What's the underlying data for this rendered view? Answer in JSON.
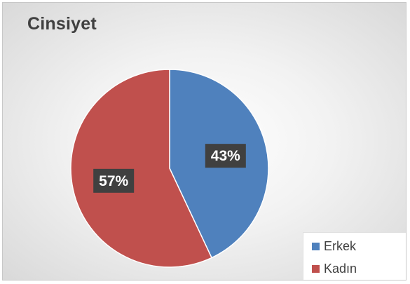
{
  "chart_data": {
    "type": "pie",
    "title": "Cinsiyet",
    "categories": [
      "Erkek",
      "Kadın"
    ],
    "values": [
      43,
      57
    ],
    "data_labels": [
      "43%",
      "57%"
    ],
    "colors": [
      "#4f81bd",
      "#c0504d"
    ],
    "legend_position": "bottom-right"
  }
}
